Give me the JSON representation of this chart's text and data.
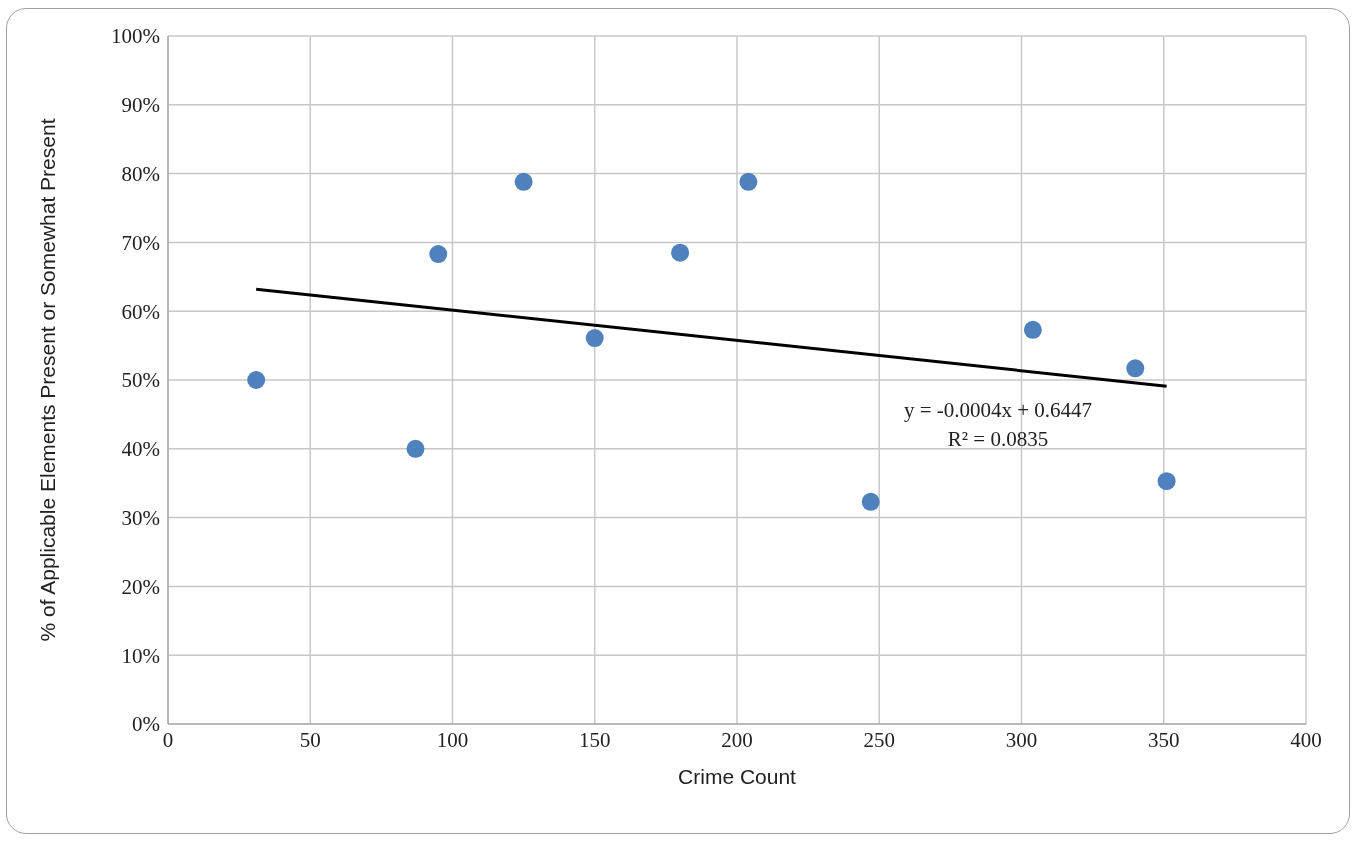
{
  "chart_data": {
    "type": "scatter",
    "xlabel": "Crime Count",
    "ylabel": "% of Applicable Elements Present or Somewhat Present",
    "xlim": [
      0,
      400
    ],
    "xticks": [
      0,
      50,
      100,
      150,
      200,
      250,
      300,
      350,
      400
    ],
    "ylim": [
      0,
      100
    ],
    "yticks": [
      {
        "value": 0,
        "label": "0%"
      },
      {
        "value": 10,
        "label": "10%"
      },
      {
        "value": 20,
        "label": "20%"
      },
      {
        "value": 30,
        "label": "30%"
      },
      {
        "value": 40,
        "label": "40%"
      },
      {
        "value": 50,
        "label": "50%"
      },
      {
        "value": 60,
        "label": "60%"
      },
      {
        "value": 70,
        "label": "70%"
      },
      {
        "value": 80,
        "label": "80%"
      },
      {
        "value": 90,
        "label": "90%"
      },
      {
        "value": 100,
        "label": "100%"
      }
    ],
    "grid": true,
    "legend": false,
    "series": [
      {
        "type": "scatter",
        "color": "#4f81bd",
        "marker": "circle",
        "x": [
          31,
          87,
          95,
          125,
          150,
          180,
          204,
          247,
          304,
          340,
          351
        ],
        "values": [
          50,
          40,
          68.3,
          78.8,
          56.1,
          68.5,
          78.8,
          32.3,
          57.3,
          51.7,
          35.3
        ]
      },
      {
        "type": "line",
        "color": "#000000",
        "marker": "none",
        "x": [
          31,
          351
        ],
        "values": [
          63.2,
          49.1
        ]
      }
    ],
    "annotations": [
      "y = -0.0004x + 0.6447",
      "R² = 0.0835"
    ]
  }
}
